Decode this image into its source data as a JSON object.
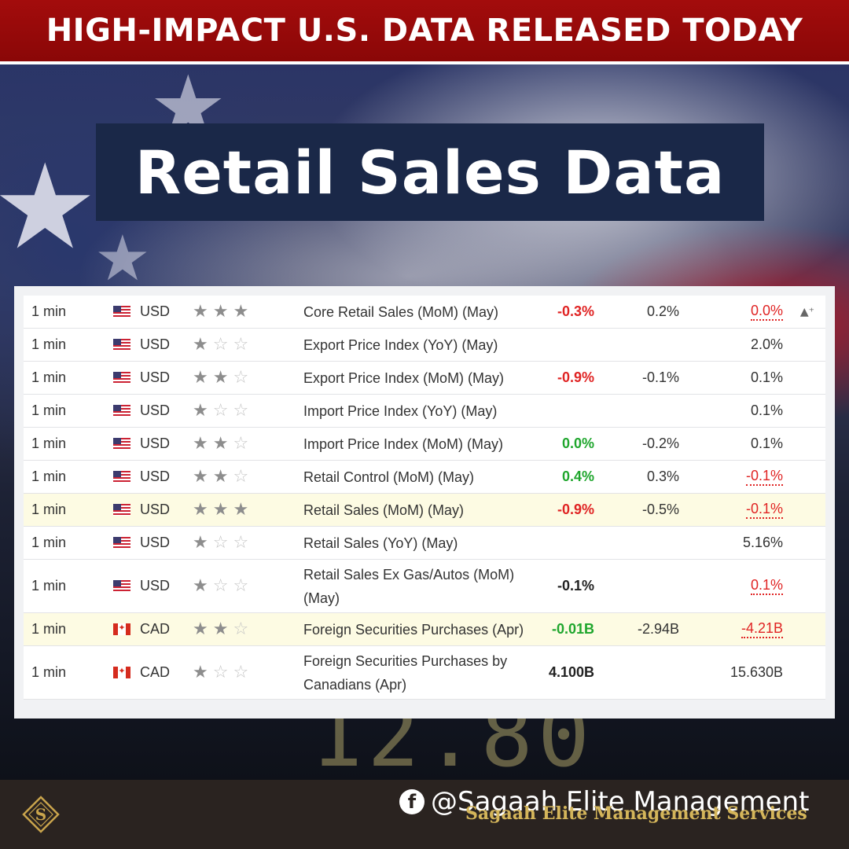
{
  "banner": {
    "text": "HIGH-IMPACT U.S. DATA RELEASED TODAY"
  },
  "title": {
    "text": "Retail Sales Data"
  },
  "background": {
    "ghost_text": "12.80"
  },
  "colors": {
    "negative": "#e02424",
    "positive": "#1fa62d",
    "banner": "#a30c0c",
    "title_box": "#1a2848",
    "highlight_row": "#fdfbe3"
  },
  "calendar": {
    "rows": [
      {
        "time": "1 min",
        "flag": "us-flag-icon",
        "currency": "USD",
        "importance": 3,
        "event": "Core Retail Sales (MoM) (May)",
        "actual": "-0.3%",
        "actual_color": "red",
        "forecast": "0.2%",
        "previous": "0.0%",
        "previous_revised": true,
        "highlight": false,
        "alert": true
      },
      {
        "time": "1 min",
        "flag": "us-flag-icon",
        "currency": "USD",
        "importance": 1,
        "event": "Export Price Index (YoY) (May)",
        "actual": "",
        "actual_color": "",
        "forecast": "",
        "previous": "2.0%",
        "previous_revised": false,
        "highlight": false,
        "alert": false
      },
      {
        "time": "1 min",
        "flag": "us-flag-icon",
        "currency": "USD",
        "importance": 2,
        "event": "Export Price Index (MoM) (May)",
        "actual": "-0.9%",
        "actual_color": "red",
        "forecast": "-0.1%",
        "previous": "0.1%",
        "previous_revised": false,
        "highlight": false,
        "alert": false
      },
      {
        "time": "1 min",
        "flag": "us-flag-icon",
        "currency": "USD",
        "importance": 1,
        "event": "Import Price Index (YoY) (May)",
        "actual": "",
        "actual_color": "",
        "forecast": "",
        "previous": "0.1%",
        "previous_revised": false,
        "highlight": false,
        "alert": false
      },
      {
        "time": "1 min",
        "flag": "us-flag-icon",
        "currency": "USD",
        "importance": 2,
        "event": "Import Price Index (MoM) (May)",
        "actual": "0.0%",
        "actual_color": "green",
        "forecast": "-0.2%",
        "previous": "0.1%",
        "previous_revised": false,
        "highlight": false,
        "alert": false
      },
      {
        "time": "1 min",
        "flag": "us-flag-icon",
        "currency": "USD",
        "importance": 2,
        "event": "Retail Control (MoM) (May)",
        "actual": "0.4%",
        "actual_color": "green",
        "forecast": "0.3%",
        "previous": "-0.1%",
        "previous_revised": true,
        "highlight": false,
        "alert": false
      },
      {
        "time": "1 min",
        "flag": "us-flag-icon",
        "currency": "USD",
        "importance": 3,
        "event": "Retail Sales (MoM) (May)",
        "actual": "-0.9%",
        "actual_color": "red",
        "forecast": "-0.5%",
        "previous": "-0.1%",
        "previous_revised": true,
        "highlight": true,
        "alert": false
      },
      {
        "time": "1 min",
        "flag": "us-flag-icon",
        "currency": "USD",
        "importance": 1,
        "event": "Retail Sales (YoY) (May)",
        "actual": "",
        "actual_color": "",
        "forecast": "",
        "previous": "5.16%",
        "previous_revised": false,
        "highlight": false,
        "alert": false
      },
      {
        "time": "1 min",
        "flag": "us-flag-icon",
        "currency": "USD",
        "importance": 1,
        "event": "Retail Sales Ex Gas/Autos (MoM) (May)",
        "actual": "-0.1%",
        "actual_color": "dark",
        "forecast": "",
        "previous": "0.1%",
        "previous_revised": true,
        "highlight": false,
        "alert": false
      },
      {
        "time": "1 min",
        "flag": "ca-flag-icon",
        "currency": "CAD",
        "importance": 2,
        "event": "Foreign Securities Purchases (Apr)",
        "actual": "-0.01B",
        "actual_color": "green",
        "forecast": "-2.94B",
        "previous": "-4.21B",
        "previous_revised": true,
        "highlight": true,
        "alert": false
      },
      {
        "time": "1 min",
        "flag": "ca-flag-icon",
        "currency": "CAD",
        "importance": 1,
        "event": "Foreign Securities Purchases by Canadians (Apr)",
        "actual": "4.100B",
        "actual_color": "dark",
        "forecast": "",
        "previous": "15.630B",
        "previous_revised": false,
        "highlight": false,
        "alert": false
      }
    ]
  },
  "footer": {
    "social_icon": "facebook-icon",
    "handle": "@Sagaah Elite Management",
    "brand": "Sagaah Elite Management Services",
    "logo_icon": "diamond-s-logo-icon"
  }
}
